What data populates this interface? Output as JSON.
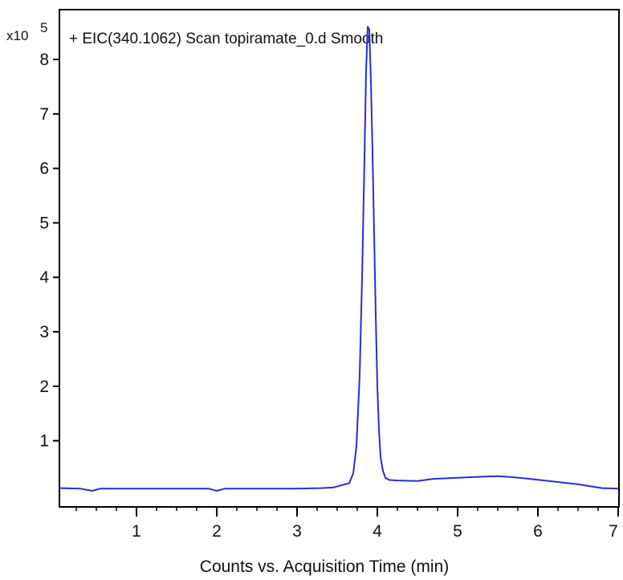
{
  "chart_data": {
    "type": "line",
    "title": "+ EIC(340.1062) Scan topiramate_0.d  Smooth",
    "xlabel": "Counts vs. Acquisition Time (min)",
    "ylabel": "",
    "y_multiplier": {
      "base": "x10",
      "exponent": "5"
    },
    "xlim": [
      0.05,
      7
    ],
    "ylim": [
      -0.2,
      8.9
    ],
    "x_ticks": [
      1,
      2,
      3,
      4,
      5,
      6,
      7
    ],
    "x_tick_labels": [
      "1",
      "2",
      "3",
      "4",
      "5",
      "6",
      "7"
    ],
    "y_ticks": [
      1,
      2,
      3,
      4,
      5,
      6,
      7,
      8
    ],
    "y_tick_labels": [
      "1",
      "2",
      "3",
      "4",
      "5",
      "6",
      "7",
      "8"
    ],
    "grid": false,
    "colors": {
      "line": "#2b2bd6",
      "axis": "#000000"
    },
    "series": [
      {
        "x": [
          0.05,
          0.3,
          0.45,
          0.55,
          1.0,
          1.5,
          1.9,
          2.0,
          2.1,
          2.5,
          3.0,
          3.3,
          3.45,
          3.55,
          3.65,
          3.7,
          3.74,
          3.78,
          3.81,
          3.84,
          3.86,
          3.88,
          3.9,
          3.92,
          3.94,
          3.96,
          3.98,
          4.0,
          4.02,
          4.04,
          4.07,
          4.1,
          4.15,
          4.25,
          4.5,
          4.7,
          5.0,
          5.3,
          5.5,
          5.7,
          5.9,
          6.2,
          6.5,
          6.8,
          7.0
        ],
        "y": [
          0.13,
          0.12,
          0.08,
          0.12,
          0.12,
          0.12,
          0.12,
          0.08,
          0.12,
          0.12,
          0.12,
          0.13,
          0.14,
          0.18,
          0.22,
          0.4,
          0.9,
          2.2,
          4.0,
          6.2,
          7.8,
          8.6,
          8.55,
          7.6,
          6.3,
          4.8,
          3.3,
          2.0,
          1.2,
          0.7,
          0.45,
          0.32,
          0.28,
          0.27,
          0.26,
          0.3,
          0.32,
          0.34,
          0.35,
          0.33,
          0.3,
          0.25,
          0.2,
          0.13,
          0.12
        ]
      }
    ]
  }
}
